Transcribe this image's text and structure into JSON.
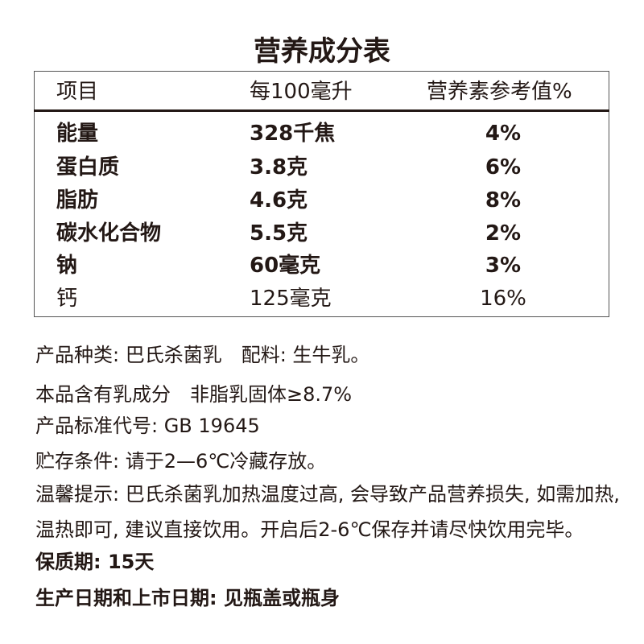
{
  "title": "营养成分表",
  "table": {
    "header": [
      "项目",
      "每100毫升",
      "营养素参考值%"
    ],
    "rows": [
      [
        "能量",
        "328千焦",
        "4%"
      ],
      [
        "蛋白质",
        "3.8克",
        "6%"
      ],
      [
        "脂肪",
        "4.6克",
        "8%"
      ],
      [
        "碳水化合物",
        "5.5克",
        "2%"
      ],
      [
        "钠",
        "60毫克",
        "3%"
      ],
      [
        "钙",
        "125毫克",
        "16%"
      ]
    ]
  },
  "notes": [
    "产品种类: 巴氏杀菌乳　配料: 生牛乳。",
    "本品含有乳成分　非脂乳固体≥8.7%",
    "产品标准代号: GB 19645",
    "贮存条件: 请于2—6℃冷藏存放。",
    "温馨提示: 巴氏杀菌乳加热温度过高, 会导致产品营养损失, 如需加热,",
    "温热即可, 建议直接饮用。开启后2-6℃保存并请尽快饮用完毕。",
    "保质期:  15天",
    "生产日期和上市日期: 见瓶盖或瓶身"
  ]
}
